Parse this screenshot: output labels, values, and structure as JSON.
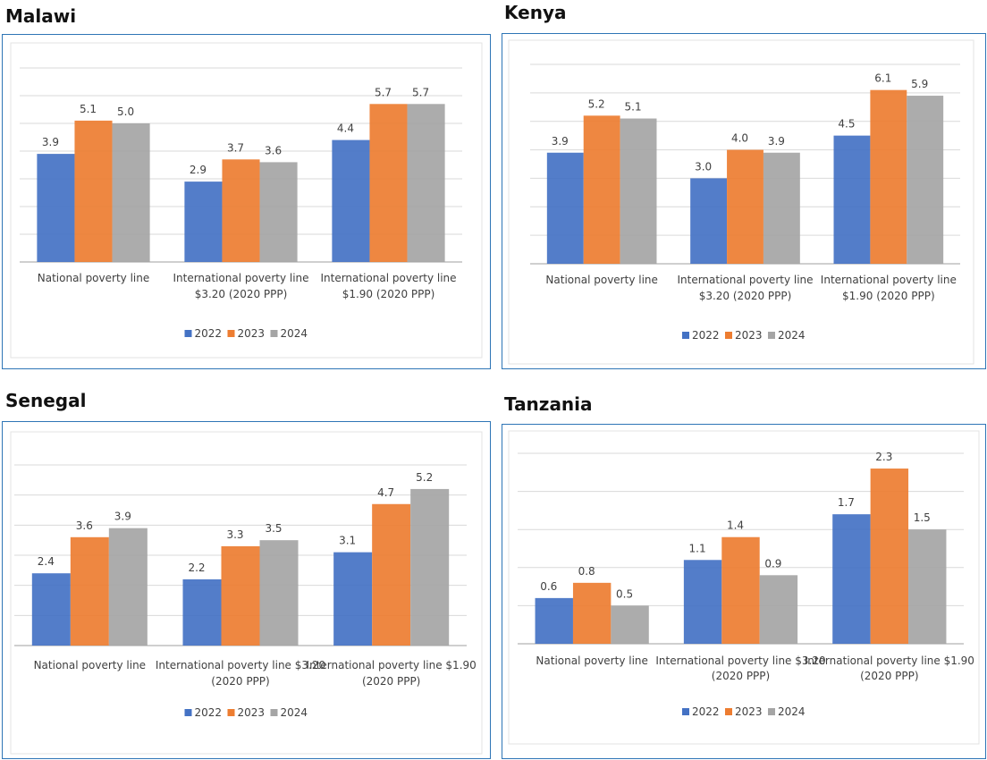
{
  "colors": {
    "2022": "#4472c4",
    "2023": "#ed7d31",
    "2024": "#a5a5a5",
    "frame": "#2e75b6",
    "gridline": "#d9d9d9",
    "axis": "#bfbfbf",
    "label": "#404040"
  },
  "chart_data": [
    {
      "type": "bar",
      "title": "Malawi",
      "categories": [
        [
          "National poverty line"
        ],
        [
          "International poverty line",
          "$3.20 (2020 PPP)"
        ],
        [
          "International poverty line",
          "$1.90 (2020 PPP)"
        ]
      ],
      "series": [
        {
          "name": "2022",
          "values": [
            3.9,
            2.9,
            4.4
          ]
        },
        {
          "name": "2023",
          "values": [
            5.1,
            3.7,
            5.7
          ]
        },
        {
          "name": "2024",
          "values": [
            5.0,
            3.6,
            5.7
          ]
        }
      ],
      "ylim": [
        0,
        7
      ],
      "grid": true,
      "legend": "bottom"
    },
    {
      "type": "bar",
      "title": "Kenya",
      "categories": [
        [
          "National poverty line"
        ],
        [
          "International poverty line",
          "$3.20 (2020 PPP)"
        ],
        [
          "International poverty line",
          "$1.90 (2020 PPP)"
        ]
      ],
      "series": [
        {
          "name": "2022",
          "values": [
            3.9,
            3.0,
            4.5
          ]
        },
        {
          "name": "2023",
          "values": [
            5.2,
            4.0,
            6.1
          ]
        },
        {
          "name": "2024",
          "values": [
            5.1,
            3.9,
            5.9
          ]
        }
      ],
      "ylim": [
        0,
        7
      ],
      "grid": true,
      "legend": "bottom"
    },
    {
      "type": "bar",
      "title": "Senegal",
      "categories": [
        [
          "National poverty line"
        ],
        [
          "International poverty line $3.20",
          "(2020 PPP)"
        ],
        [
          "International poverty line $1.90",
          "(2020 PPP)"
        ]
      ],
      "series": [
        {
          "name": "2022",
          "values": [
            2.4,
            2.2,
            3.1
          ]
        },
        {
          "name": "2023",
          "values": [
            3.6,
            3.3,
            4.7
          ]
        },
        {
          "name": "2024",
          "values": [
            3.9,
            3.5,
            5.2
          ]
        }
      ],
      "ylim": [
        0,
        6
      ],
      "grid": true,
      "legend": "bottom"
    },
    {
      "type": "bar",
      "title": "Tanzania",
      "categories": [
        [
          "National poverty line"
        ],
        [
          "International poverty line $3.20",
          "(2020 PPP)"
        ],
        [
          "International poverty line $1.90",
          "(2020 PPP)"
        ]
      ],
      "series": [
        {
          "name": "2022",
          "values": [
            0.6,
            1.1,
            1.7
          ]
        },
        {
          "name": "2023",
          "values": [
            0.8,
            1.4,
            2.3
          ]
        },
        {
          "name": "2024",
          "values": [
            0.5,
            0.9,
            1.5
          ]
        }
      ],
      "ylim": [
        0,
        2.5
      ],
      "grid": true,
      "legend": "bottom"
    }
  ]
}
